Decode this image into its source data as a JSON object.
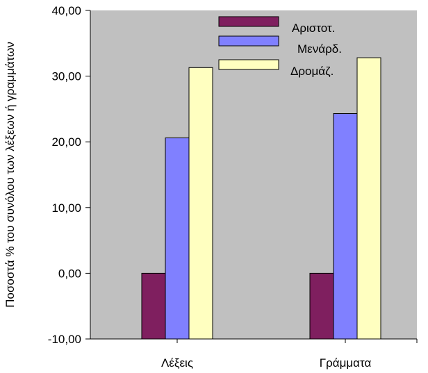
{
  "colors": {
    "plot_bg": "#c0c0c0",
    "axis": "#000000",
    "bar_outline": "#000000"
  },
  "chart_data": {
    "type": "bar",
    "title": "",
    "xlabel": "",
    "ylabel": "Ποσοστά % του συνόλου των λέξεων ή γραμμάτων",
    "ylim": [
      -10,
      40
    ],
    "yticks": [
      -10,
      0,
      10,
      20,
      30,
      40
    ],
    "ytick_labels": [
      "-10,00",
      "0,00",
      "10,00",
      "20,00",
      "30,00",
      "40,00"
    ],
    "grid": false,
    "legend_position": "top-right",
    "categories": [
      "Λέξεις",
      "Γράμματα"
    ],
    "series": [
      {
        "name": "Αριστοτ.",
        "color": "#7f1f5f",
        "values": [
          0.0,
          0.0
        ]
      },
      {
        "name": "Μενάρδ.",
        "color": "#8080ff",
        "values": [
          20.6,
          24.3
        ]
      },
      {
        "name": "Δρομάζ.",
        "color": "#ffffc0",
        "values": [
          31.3,
          32.8
        ]
      }
    ]
  }
}
